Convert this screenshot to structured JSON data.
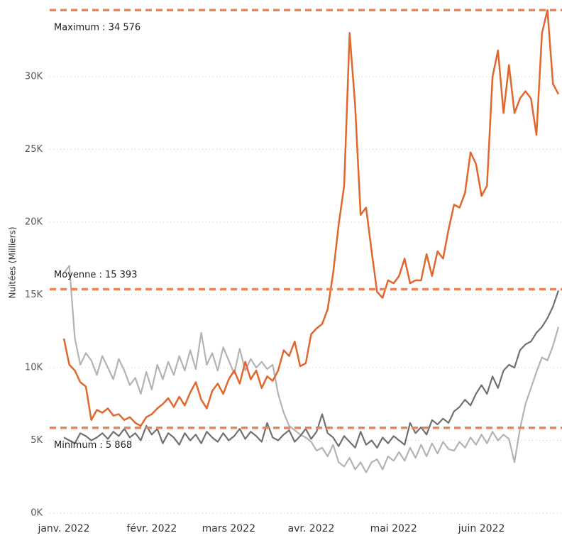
{
  "chart_data": {
    "type": "line",
    "y_label": "Nuitées (Milliers)",
    "ylim": [
      0,
      35000
    ],
    "yticks": [
      {
        "value": 0,
        "label": "0K"
      },
      {
        "value": 5000,
        "label": "5K"
      },
      {
        "value": 10000,
        "label": "10K"
      },
      {
        "value": 15000,
        "label": "15K"
      },
      {
        "value": 20000,
        "label": "20K"
      },
      {
        "value": 25000,
        "label": "25K"
      },
      {
        "value": 30000,
        "label": "30K"
      }
    ],
    "grid": true,
    "categories": [
      "janv. 2022",
      null,
      null,
      null,
      null,
      null,
      null,
      null,
      null,
      null,
      null,
      null,
      null,
      null,
      null,
      null,
      "févr. 2022",
      null,
      null,
      null,
      null,
      null,
      null,
      null,
      null,
      null,
      null,
      null,
      null,
      null,
      "mars 2022",
      null,
      null,
      null,
      null,
      null,
      null,
      null,
      null,
      null,
      null,
      null,
      null,
      null,
      null,
      "avr. 2022",
      null,
      null,
      null,
      null,
      null,
      null,
      null,
      null,
      null,
      null,
      null,
      null,
      null,
      null,
      "mai 2022",
      null,
      null,
      null,
      null,
      null,
      null,
      null,
      null,
      null,
      null,
      null,
      null,
      null,
      null,
      null,
      "juin 2022",
      null,
      null,
      null,
      null,
      null,
      null,
      null,
      null,
      null,
      null,
      null,
      null,
      null,
      null
    ],
    "series": [
      {
        "color": "#b3b3b3",
        "values": [
          16500,
          17000,
          12000,
          10200,
          11000,
          10500,
          9500,
          10800,
          10000,
          9200,
          10600,
          9800,
          8800,
          9300,
          8200,
          9700,
          8500,
          10200,
          9200,
          10400,
          9500,
          10800,
          9800,
          11200,
          9900,
          12400,
          10200,
          11000,
          9800,
          11400,
          10500,
          9600,
          11300,
          9800,
          10600,
          10000,
          10400,
          9900,
          10200,
          8200,
          6900,
          6000,
          5700,
          5400,
          5200,
          4900,
          4300,
          4500,
          3900,
          4700,
          3500,
          3200,
          3800,
          3000,
          3500,
          2800,
          3500,
          3700,
          3000,
          3900,
          3600,
          4200,
          3600,
          4500,
          3800,
          4700,
          3900,
          4800,
          4100,
          4900,
          4400,
          4300,
          4900,
          4500,
          5200,
          4700,
          5400,
          4800,
          5600,
          5000,
          5400,
          5100,
          3500,
          5800,
          7500,
          8600,
          9700,
          10700,
          10500,
          11500,
          12800
        ]
      },
      {
        "color": "#707070",
        "values": [
          5200,
          5000,
          4800,
          5500,
          5300,
          5000,
          5200,
          5500,
          5100,
          5600,
          5300,
          5800,
          5200,
          5500,
          5000,
          6000,
          5400,
          5800,
          4800,
          5500,
          5200,
          4700,
          5500,
          5000,
          5400,
          4800,
          5600,
          5200,
          4900,
          5500,
          5000,
          5300,
          5800,
          5100,
          5600,
          5300,
          4900,
          6200,
          5200,
          5000,
          5400,
          5700,
          4900,
          5300,
          5800,
          5100,
          5600,
          6800,
          5500,
          5200,
          4600,
          5300,
          4900,
          4500,
          5600,
          4700,
          5000,
          4500,
          5200,
          4800,
          5300,
          5000,
          4700,
          6200,
          5500,
          5900,
          5400,
          6400,
          6100,
          6500,
          6200,
          7000,
          7300,
          7800,
          7400,
          8200,
          8800,
          8200,
          9400,
          8600,
          9800,
          10200,
          10000,
          11200,
          11600,
          11800,
          12400,
          12800,
          13400,
          14200,
          15300
        ]
      },
      {
        "color": "#e0672e",
        "values": [
          12000,
          10200,
          9800,
          9000,
          8700,
          6400,
          7100,
          6900,
          7200,
          6700,
          6800,
          6400,
          6600,
          6200,
          6000,
          6600,
          6800,
          7200,
          7500,
          7900,
          7300,
          8000,
          7400,
          8300,
          9000,
          7800,
          7200,
          8400,
          8900,
          8200,
          9200,
          9800,
          8900,
          10400,
          9200,
          9800,
          8600,
          9400,
          9100,
          9800,
          11200,
          10800,
          11800,
          10100,
          10300,
          12300,
          12700,
          13000,
          14000,
          16500,
          19800,
          22500,
          33000,
          28000,
          20500,
          21000,
          18000,
          15200,
          14800,
          16000,
          15800,
          16300,
          17500,
          15800,
          16000,
          16000,
          17800,
          16300,
          18000,
          17500,
          19500,
          21200,
          21000,
          22000,
          24800,
          24000,
          21800,
          22500,
          30000,
          31800,
          27500,
          30800,
          27500,
          28500,
          29000,
          28500,
          26000,
          33000,
          34576,
          29500,
          28800
        ]
      }
    ],
    "reference_lines": [
      {
        "label": "Maximum : 34 576",
        "value": 34576,
        "color": "#e8855b"
      },
      {
        "label": "Moyenne : 15 393",
        "value": 15393,
        "color": "#e8855b"
      },
      {
        "label": "Minimum : 5 868",
        "value": 5868,
        "color": "#e8855b"
      }
    ]
  }
}
